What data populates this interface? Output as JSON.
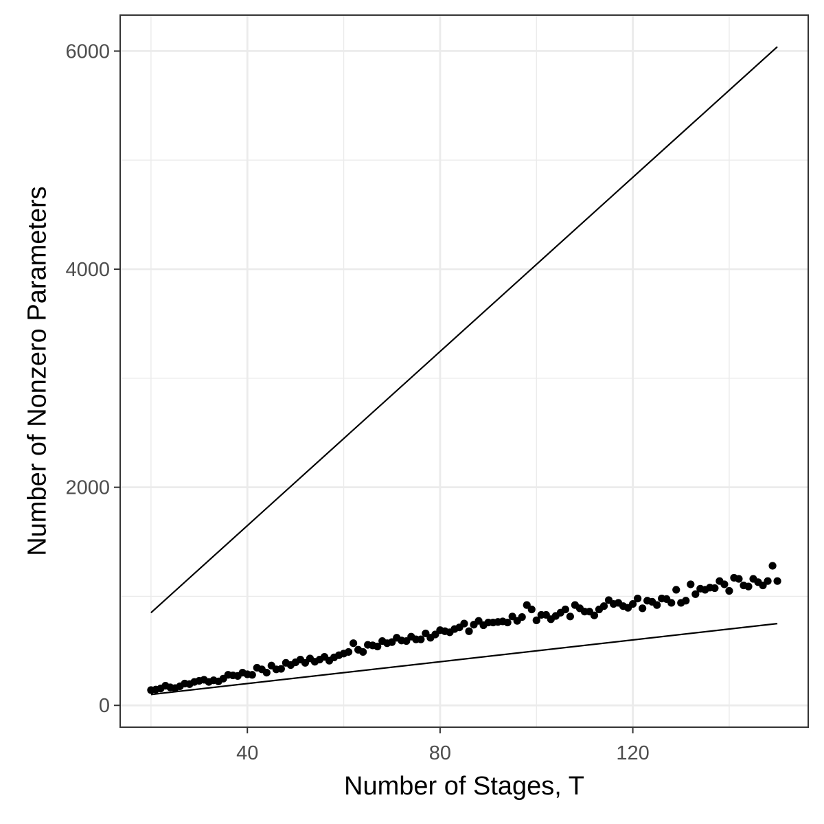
{
  "chart_data": {
    "type": "scatter",
    "title": "",
    "xlabel": "Number of Stages, T",
    "ylabel": "Number of Nonzero Parameters",
    "xlim": [
      13.6,
      156.4
    ],
    "ylim": [
      -200,
      6330
    ],
    "x_ticks": [
      40,
      80,
      120
    ],
    "x_minor_ticks": [
      20,
      60,
      100,
      140
    ],
    "y_ticks": [
      0,
      2000,
      4000,
      6000
    ],
    "y_minor_ticks": [
      1000,
      3000,
      5000
    ],
    "x_tick_labels": [
      "40",
      "80",
      "120"
    ],
    "y_tick_labels": [
      "0",
      "2000",
      "4000",
      "6000"
    ],
    "grid": true,
    "legend": "none",
    "colors": {
      "points": "#000000",
      "lines": "#000000",
      "grid": "#ebebeb",
      "panel_border": "#333333"
    },
    "series": [
      {
        "type": "scatter",
        "x": [
          20,
          21,
          22,
          23,
          24,
          25,
          26,
          27,
          28,
          29,
          30,
          31,
          32,
          33,
          34,
          35,
          36,
          37,
          38,
          39,
          40,
          41,
          42,
          43,
          44,
          45,
          46,
          47,
          48,
          49,
          50,
          51,
          52,
          53,
          54,
          55,
          56,
          57,
          58,
          59,
          60,
          61,
          62,
          63,
          64,
          65,
          66,
          67,
          68,
          69,
          70,
          71,
          72,
          73,
          74,
          75,
          76,
          77,
          78,
          79,
          80,
          81,
          82,
          83,
          84,
          85,
          86,
          87,
          88,
          89,
          90,
          91,
          92,
          93,
          94,
          95,
          96,
          97,
          98,
          99,
          100,
          101,
          102,
          103,
          104,
          105,
          106,
          107,
          108,
          109,
          110,
          111,
          112,
          113,
          114,
          115,
          116,
          117,
          118,
          119,
          120,
          121,
          122,
          123,
          124,
          125,
          126,
          127,
          128,
          129,
          130,
          131,
          132,
          133,
          134,
          135,
          136,
          137,
          138,
          139,
          140,
          141,
          142,
          143,
          144,
          145,
          146,
          147,
          148,
          149,
          150
        ],
        "y": [
          140,
          145,
          155,
          180,
          165,
          158,
          175,
          200,
          195,
          215,
          225,
          235,
          215,
          230,
          220,
          245,
          280,
          275,
          270,
          300,
          285,
          280,
          345,
          330,
          300,
          365,
          330,
          335,
          390,
          370,
          395,
          420,
          390,
          430,
          400,
          420,
          445,
          410,
          440,
          460,
          475,
          490,
          570,
          510,
          490,
          555,
          550,
          540,
          590,
          570,
          580,
          620,
          595,
          590,
          630,
          605,
          605,
          660,
          620,
          650,
          690,
          680,
          670,
          700,
          715,
          750,
          680,
          740,
          775,
          735,
          760,
          760,
          765,
          770,
          760,
          815,
          775,
          810,
          920,
          880,
          780,
          830,
          830,
          790,
          820,
          850,
          880,
          815,
          920,
          890,
          860,
          860,
          825,
          880,
          910,
          965,
          930,
          940,
          910,
          895,
          930,
          980,
          890,
          960,
          950,
          920,
          980,
          975,
          940,
          1060,
          940,
          960,
          1110,
          1020,
          1070,
          1060,
          1080,
          1075,
          1140,
          1110,
          1050,
          1170,
          1160,
          1100,
          1090,
          1160,
          1130,
          1100,
          1140,
          1280,
          1140
        ]
      },
      {
        "type": "line",
        "x": [
          20,
          150
        ],
        "y": [
          850,
          6040
        ]
      },
      {
        "type": "line",
        "x": [
          20,
          150
        ],
        "y": [
          100,
          750
        ]
      }
    ]
  }
}
